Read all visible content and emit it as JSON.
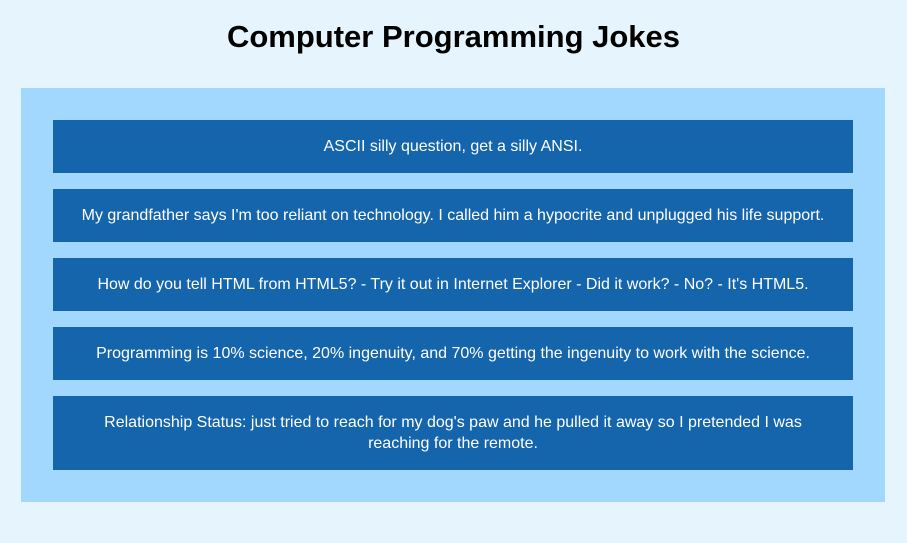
{
  "header": {
    "title": "Computer Programming Jokes"
  },
  "colors": {
    "page_background": "#e6f4fd",
    "panel_background": "#a3d8fe",
    "card_background": "#1565ac",
    "card_text": "#ffffff"
  },
  "jokes": [
    {
      "text": "ASCII silly question, get a silly ANSI."
    },
    {
      "text": "My grandfather says I'm too reliant on technology. I called him a hypocrite and unplugged his life support."
    },
    {
      "text": "How do you tell HTML from HTML5? - Try it out in Internet Explorer - Did it work? - No? - It's HTML5."
    },
    {
      "text": "Programming is 10% science, 20% ingenuity, and 70% getting the ingenuity to work with the science."
    },
    {
      "text": "Relationship Status: just tried to reach for my dog's paw and he pulled it away so I pretended I was reaching for the remote."
    }
  ]
}
